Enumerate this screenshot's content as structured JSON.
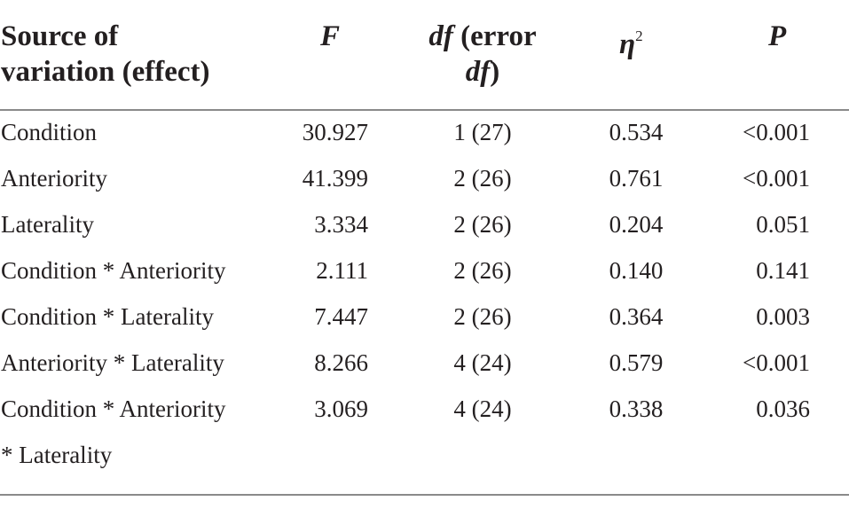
{
  "table": {
    "headers": {
      "source_line1": "Source of",
      "source_line2": "variation (effect)",
      "f": "F",
      "df_italic1": "df",
      "df_rest1": " (error",
      "df_italic2": "df",
      "df_rest2": ")",
      "eta_symbol": "η",
      "eta_sup": "2",
      "p": "P"
    },
    "rows": [
      {
        "source": "Condition",
        "f": "30.927",
        "df": "1 (27)",
        "eta2": "0.534",
        "p": "<0.001"
      },
      {
        "source": "Anteriority",
        "f": "41.399",
        "df": "2 (26)",
        "eta2": "0.761",
        "p": "<0.001"
      },
      {
        "source": "Laterality",
        "f": "3.334",
        "df": "2 (26)",
        "eta2": "0.204",
        "p": "0.051"
      },
      {
        "source": "Condition * Anteriority",
        "f": "2.111",
        "df": "2 (26)",
        "eta2": "0.140",
        "p": "0.141"
      },
      {
        "source": "Condition * Laterality",
        "f": "7.447",
        "df": "2 (26)",
        "eta2": "0.364",
        "p": "0.003"
      },
      {
        "source": "Anteriority * Laterality",
        "f": "8.266",
        "df": "4 (24)",
        "eta2": "0.579",
        "p": "<0.001"
      },
      {
        "source": "Condition * Anteriority",
        "source_cont": "* Laterality",
        "f": "3.069",
        "df": "4 (24)",
        "eta2": "0.338",
        "p": "0.036"
      }
    ]
  }
}
